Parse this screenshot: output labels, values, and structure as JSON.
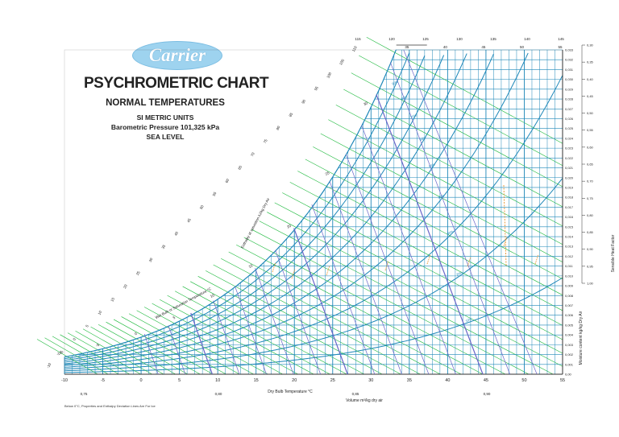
{
  "brand": {
    "logo_text": "Carrier"
  },
  "header": {
    "title": "PSYCHROMETRIC CHART",
    "subtitle": "NORMAL TEMPERATURES",
    "units": "SI METRIC UNITS",
    "pressure": "Barometric Pressure 101,325 kPa",
    "level": "SEA LEVEL"
  },
  "footnote": "Below 0°C, Properties and Enthalpy Deviation Lines Are For Ice",
  "chart_data": {
    "type": "line",
    "title": "PSYCHROMETRIC CHART",
    "xlabel": "Dry Bulb Temperature   °C",
    "ylabel": "Moisture content  kg/kg Dry Air",
    "x_ticks": [
      -10,
      -5,
      0,
      5,
      10,
      15,
      20,
      25,
      30,
      35,
      40,
      45,
      50,
      55
    ],
    "xlim": [
      -10,
      55
    ],
    "ylim": [
      0,
      0.033
    ],
    "y_ticks": [
      "0,001",
      "0,002",
      "0,003",
      "0,004",
      "0,005",
      "0,006",
      "0,007",
      "0,008",
      "0,009",
      "0,010",
      "0,011",
      "0,012",
      "0,013",
      "0,014",
      "0,015",
      "0,016",
      "0,017",
      "0,018",
      "0,019",
      "0,020",
      "0,021",
      "0,022",
      "0,023",
      "0,024",
      "0,025",
      "0,026",
      "0,027",
      "0,028",
      "0,029",
      "0,030",
      "0,031",
      "0,032",
      "0,033"
    ],
    "volume_label": "Volume m³/kg dry air",
    "volume_ticks": [
      "0,75",
      "0,80",
      "0,85",
      "0,90"
    ],
    "wet_bulb_label": "Wet Bulb or Saturation Temperature  °C",
    "enthalpy_label": "Enthalpy at saturation  kJ/kg Dry Air",
    "enthalpy_top_ticks": [
      115,
      120,
      125,
      130,
      135,
      140,
      145
    ],
    "enthalpy_left_ticks": [
      -10,
      -5,
      0,
      5,
      10,
      15,
      20,
      25,
      30,
      35,
      40,
      45,
      50,
      55,
      60,
      65,
      70,
      75,
      80,
      85,
      90,
      95,
      100,
      105,
      110
    ],
    "wet_bulb_ticks": [
      -10,
      -5,
      0,
      5,
      10,
      15,
      20,
      25,
      30
    ],
    "top_temp_ticks": [
      35,
      40,
      45,
      50,
      55
    ],
    "rh_curves": [
      10,
      20,
      30,
      40,
      50,
      60,
      70,
      80,
      90,
      100
    ],
    "shf_label": "Sensible Heat Factor",
    "shf_ticks": [
      "0,30",
      "0,35",
      "0,40",
      "0,45",
      "0,50",
      "0,55",
      "0,60",
      "0,65",
      "0,70",
      "0,75",
      "0,80",
      "0,85",
      "0,90",
      "0,95",
      "1,00"
    ]
  }
}
